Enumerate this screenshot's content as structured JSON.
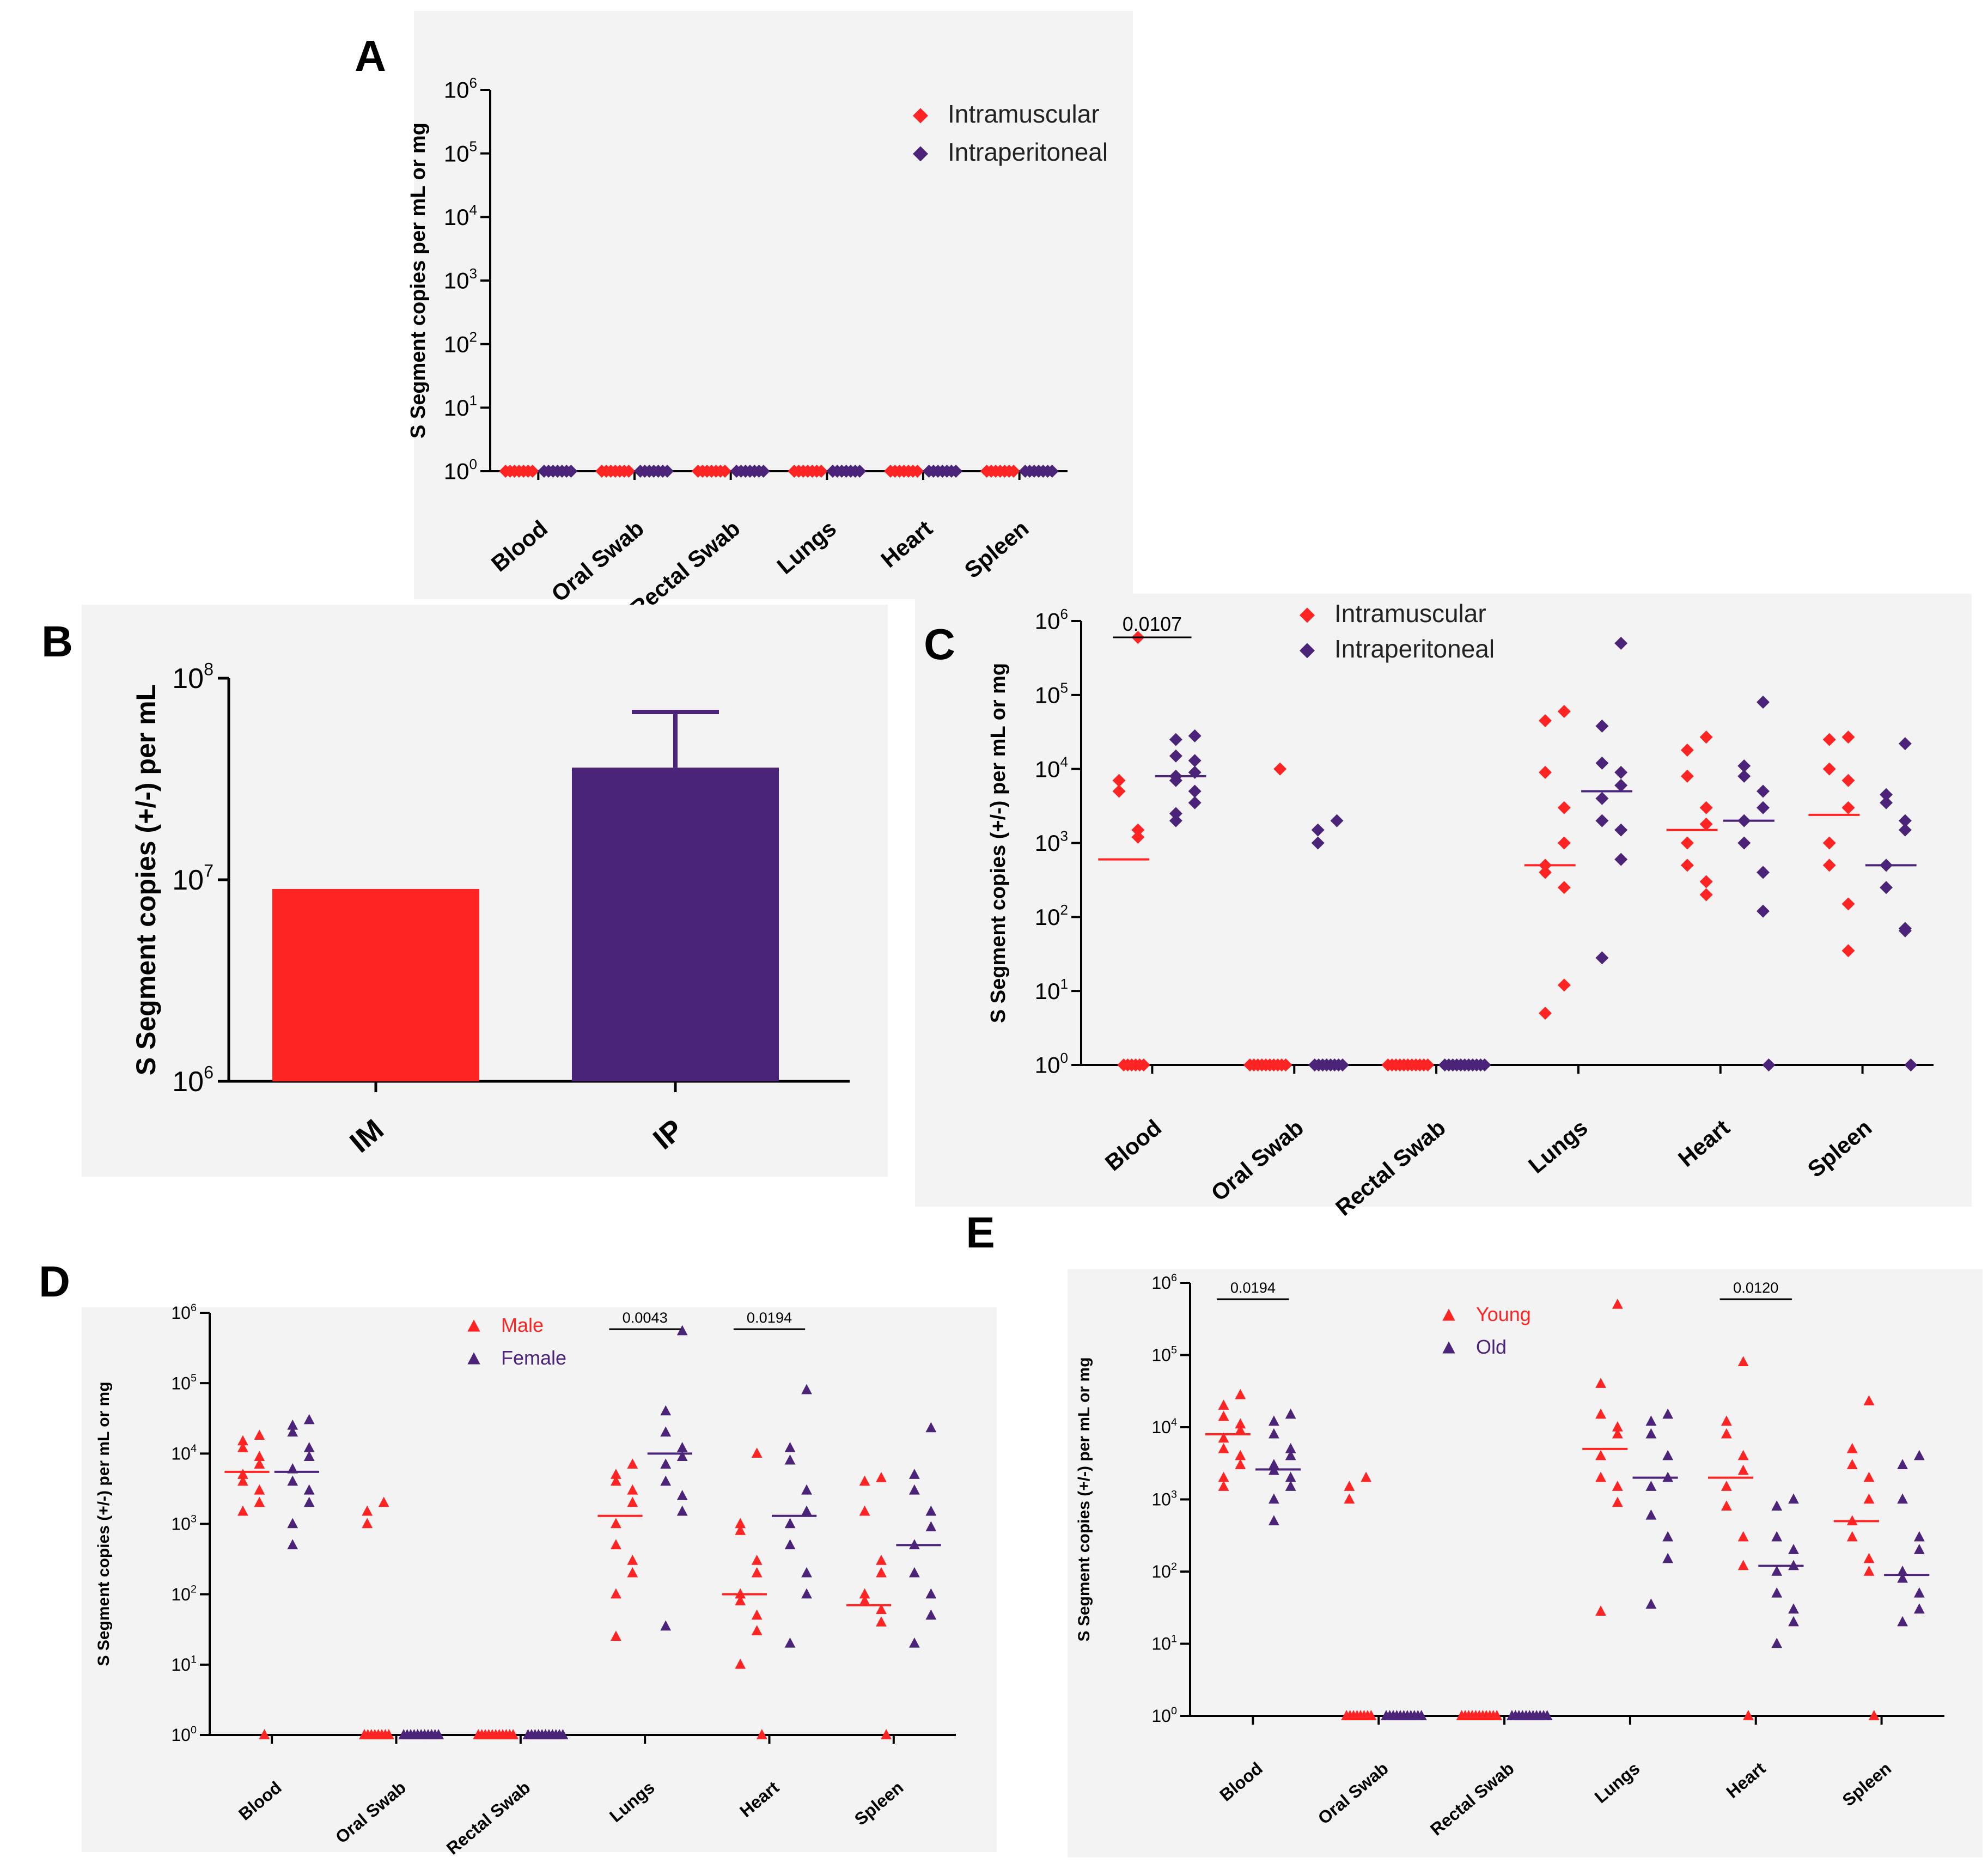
{
  "colors": {
    "red": "#ff2424",
    "purple": "#4b2479",
    "axis": "#000000",
    "shade": "#f3f3f3"
  },
  "chart_data": [
    {
      "panel": "A",
      "type": "scatter",
      "scale": "log10",
      "ylabel": "S Segment copies per mL or mg",
      "ylim_exp": [
        0,
        6
      ],
      "categories": [
        "Blood",
        "Oral Swab",
        "Rectal Swab",
        "Lungs",
        "Heart",
        "Spleen"
      ],
      "marker": "diamond",
      "legend": [
        "Intramuscular",
        "Intraperitoneal"
      ],
      "series": [
        {
          "name": "Intramuscular",
          "points": [
            [
              0,
              [
                1,
                1,
                1,
                1,
                1,
                1,
                1
              ]
            ],
            [
              1,
              [
                1,
                1,
                1,
                1,
                1,
                1,
                1
              ]
            ],
            [
              2,
              [
                1,
                1,
                1,
                1,
                1,
                1,
                1
              ]
            ],
            [
              3,
              [
                1,
                1,
                1,
                1,
                1,
                1,
                1
              ]
            ],
            [
              4,
              [
                1,
                1,
                1,
                1,
                1,
                1,
                1
              ]
            ],
            [
              5,
              [
                1,
                1,
                1,
                1,
                1,
                1,
                1
              ]
            ]
          ]
        },
        {
          "name": "Intraperitoneal",
          "points": [
            [
              0,
              [
                1,
                1,
                1,
                1,
                1,
                1,
                1
              ]
            ],
            [
              1,
              [
                1,
                1,
                1,
                1,
                1,
                1,
                1
              ]
            ],
            [
              2,
              [
                1,
                1,
                1,
                1,
                1,
                1,
                1
              ]
            ],
            [
              3,
              [
                1,
                1,
                1,
                1,
                1,
                1,
                1
              ]
            ],
            [
              4,
              [
                1,
                1,
                1,
                1,
                1,
                1,
                1
              ]
            ],
            [
              5,
              [
                1,
                1,
                1,
                1,
                1,
                1,
                1
              ]
            ]
          ]
        }
      ],
      "significance": []
    },
    {
      "panel": "B",
      "type": "bar",
      "scale": "log10",
      "ylabel": "S Segment copies (+/-) per mL",
      "ylim_exp": [
        6,
        8
      ],
      "categories": [
        "IM",
        "IP"
      ],
      "values": [
        9000000,
        36000000
      ],
      "error_upper": [
        null,
        68000000
      ]
    },
    {
      "panel": "C",
      "type": "scatter",
      "scale": "log10",
      "ylabel": "S Segment copies (+/-) per mL or mg",
      "ylim_exp": [
        0,
        6
      ],
      "categories": [
        "Blood",
        "Oral Swab",
        "Rectal Swab",
        "Lungs",
        "Heart",
        "Spleen"
      ],
      "marker": "diamond",
      "legend": [
        "Intramuscular",
        "Intraperitoneal"
      ],
      "series": [
        {
          "name": "Intramuscular",
          "medians": [
            600,
            null,
            null,
            500,
            1500,
            2400
          ],
          "points": [
            [
              0,
              [
                600000,
                7000,
                5000,
                1500,
                1200,
                1,
                1,
                1,
                1,
                1,
                1
              ]
            ],
            [
              1,
              [
                10000,
                1,
                1,
                1,
                1,
                1,
                1,
                1,
                1,
                1,
                1
              ]
            ],
            [
              2,
              [
                1,
                1,
                1,
                1,
                1,
                1,
                1,
                1,
                1,
                1,
                1
              ]
            ],
            [
              3,
              [
                60000,
                45000,
                9000,
                3000,
                1000,
                500,
                400,
                250,
                12,
                5
              ]
            ],
            [
              4,
              [
                27000,
                18000,
                8000,
                3000,
                1800,
                1000,
                500,
                300,
                200
              ]
            ],
            [
              5,
              [
                27000,
                25000,
                10000,
                7000,
                3000,
                1000,
                500,
                150,
                35
              ]
            ]
          ]
        },
        {
          "name": "Intraperitoneal",
          "medians": [
            8000,
            null,
            null,
            5000,
            2000,
            500
          ],
          "points": [
            [
              0,
              [
                28000,
                25000,
                15000,
                13000,
                9000,
                8000,
                7000,
                5000,
                3500,
                2500,
                2000
              ]
            ],
            [
              1,
              [
                2000,
                1500,
                1000,
                1,
                1,
                1,
                1,
                1,
                1,
                1,
                1
              ]
            ],
            [
              2,
              [
                1,
                1,
                1,
                1,
                1,
                1,
                1,
                1,
                1,
                1,
                1
              ]
            ],
            [
              3,
              [
                500000,
                38000,
                12000,
                9000,
                6000,
                4000,
                2000,
                1500,
                600,
                28
              ]
            ],
            [
              4,
              [
                80000,
                11000,
                8000,
                5000,
                3000,
                2000,
                1000,
                400,
                120,
                1
              ]
            ],
            [
              5,
              [
                22000,
                4500,
                3500,
                2000,
                1500,
                500,
                250,
                70,
                65,
                1
              ]
            ]
          ]
        }
      ],
      "significance": [
        {
          "label": "0.0107",
          "category": 0
        }
      ]
    },
    {
      "panel": "D",
      "type": "scatter",
      "scale": "log10",
      "ylabel": "S Segment copies (+/-) per mL or mg",
      "ylim_exp": [
        0,
        6
      ],
      "categories": [
        "Blood",
        "Oral Swab",
        "Rectal Swab",
        "Lungs",
        "Heart",
        "Spleen"
      ],
      "marker": "triangle",
      "legend": [
        "Male",
        "Female"
      ],
      "series": [
        {
          "name": "Male",
          "medians": [
            5500,
            null,
            null,
            1300,
            100,
            70
          ],
          "points": [
            [
              0,
              [
                18000,
                15000,
                12000,
                9000,
                7000,
                5000,
                4000,
                3000,
                2000,
                1500,
                1
              ]
            ],
            [
              1,
              [
                2000,
                1500,
                1000,
                1,
                1,
                1,
                1,
                1,
                1,
                1,
                1
              ]
            ],
            [
              2,
              [
                1,
                1,
                1,
                1,
                1,
                1,
                1,
                1,
                1,
                1,
                1
              ]
            ],
            [
              3,
              [
                7000,
                5000,
                4000,
                3000,
                2000,
                1000,
                500,
                300,
                200,
                100,
                25
              ]
            ],
            [
              4,
              [
                10000,
                1000,
                800,
                300,
                200,
                100,
                80,
                50,
                30,
                10,
                1
              ]
            ],
            [
              5,
              [
                4500,
                4000,
                1500,
                300,
                200,
                100,
                80,
                60,
                40,
                1
              ]
            ]
          ]
        },
        {
          "name": "Female",
          "medians": [
            5500,
            null,
            null,
            10000,
            1300,
            500
          ],
          "points": [
            [
              0,
              [
                30000,
                25000,
                20000,
                12000,
                9000,
                6000,
                4000,
                3000,
                2000,
                1000,
                500
              ]
            ],
            [
              1,
              [
                1,
                1,
                1,
                1,
                1,
                1,
                1,
                1,
                1,
                1,
                1
              ]
            ],
            [
              2,
              [
                1,
                1,
                1,
                1,
                1,
                1,
                1,
                1,
                1,
                1,
                1
              ]
            ],
            [
              3,
              [
                550000,
                40000,
                20000,
                12000,
                9000,
                7000,
                4000,
                2500,
                1500,
                35
              ]
            ],
            [
              4,
              [
                80000,
                12000,
                8000,
                3000,
                1500,
                1000,
                500,
                200,
                100,
                20
              ]
            ],
            [
              5,
              [
                23000,
                5000,
                3000,
                1500,
                900,
                500,
                200,
                100,
                50,
                20
              ]
            ]
          ]
        }
      ],
      "significance": [
        {
          "label": "0.0043",
          "category": 3
        },
        {
          "label": "0.0194",
          "category": 4
        }
      ]
    },
    {
      "panel": "E",
      "type": "scatter",
      "scale": "log10",
      "ylabel": "S Segment copies (+/-) per mL or mg",
      "ylim_exp": [
        0,
        6
      ],
      "categories": [
        "Blood",
        "Oral Swab",
        "Rectal Swab",
        "Lungs",
        "Heart",
        "Spleen"
      ],
      "marker": "triangle",
      "legend": [
        "Young",
        "Old"
      ],
      "series": [
        {
          "name": "Young",
          "medians": [
            8000,
            null,
            null,
            5000,
            2000,
            500
          ],
          "points": [
            [
              0,
              [
                28000,
                20000,
                14000,
                11000,
                9000,
                7000,
                5000,
                4000,
                3000,
                2000,
                1500
              ]
            ],
            [
              1,
              [
                2000,
                1500,
                1000,
                1,
                1,
                1,
                1,
                1,
                1,
                1,
                1
              ]
            ],
            [
              2,
              [
                1,
                1,
                1,
                1,
                1,
                1,
                1,
                1,
                1,
                1,
                1
              ]
            ],
            [
              3,
              [
                500000,
                40000,
                15000,
                10000,
                8000,
                4000,
                2000,
                1500,
                900,
                28
              ]
            ],
            [
              4,
              [
                80000,
                12000,
                8000,
                4000,
                2500,
                1500,
                800,
                300,
                120,
                1
              ]
            ],
            [
              5,
              [
                23000,
                5000,
                3000,
                2000,
                1000,
                500,
                300,
                150,
                100,
                1
              ]
            ]
          ]
        },
        {
          "name": "Old",
          "medians": [
            2600,
            null,
            null,
            2000,
            120,
            90
          ],
          "points": [
            [
              0,
              [
                15000,
                12000,
                8000,
                5000,
                4000,
                3000,
                2500,
                2000,
                1500,
                1000,
                500
              ]
            ],
            [
              1,
              [
                1,
                1,
                1,
                1,
                1,
                1,
                1,
                1,
                1,
                1,
                1
              ]
            ],
            [
              2,
              [
                1,
                1,
                1,
                1,
                1,
                1,
                1,
                1,
                1,
                1,
                1
              ]
            ],
            [
              3,
              [
                15000,
                12000,
                8000,
                4000,
                2000,
                1500,
                600,
                300,
                150,
                35
              ]
            ],
            [
              4,
              [
                1000,
                800,
                300,
                200,
                120,
                100,
                50,
                30,
                20,
                10
              ]
            ],
            [
              5,
              [
                4000,
                3000,
                1000,
                300,
                200,
                100,
                80,
                50,
                30,
                20
              ]
            ]
          ]
        }
      ],
      "significance": [
        {
          "label": "0.0194",
          "category": 0
        },
        {
          "label": "0.0120",
          "category": 4
        }
      ]
    }
  ]
}
